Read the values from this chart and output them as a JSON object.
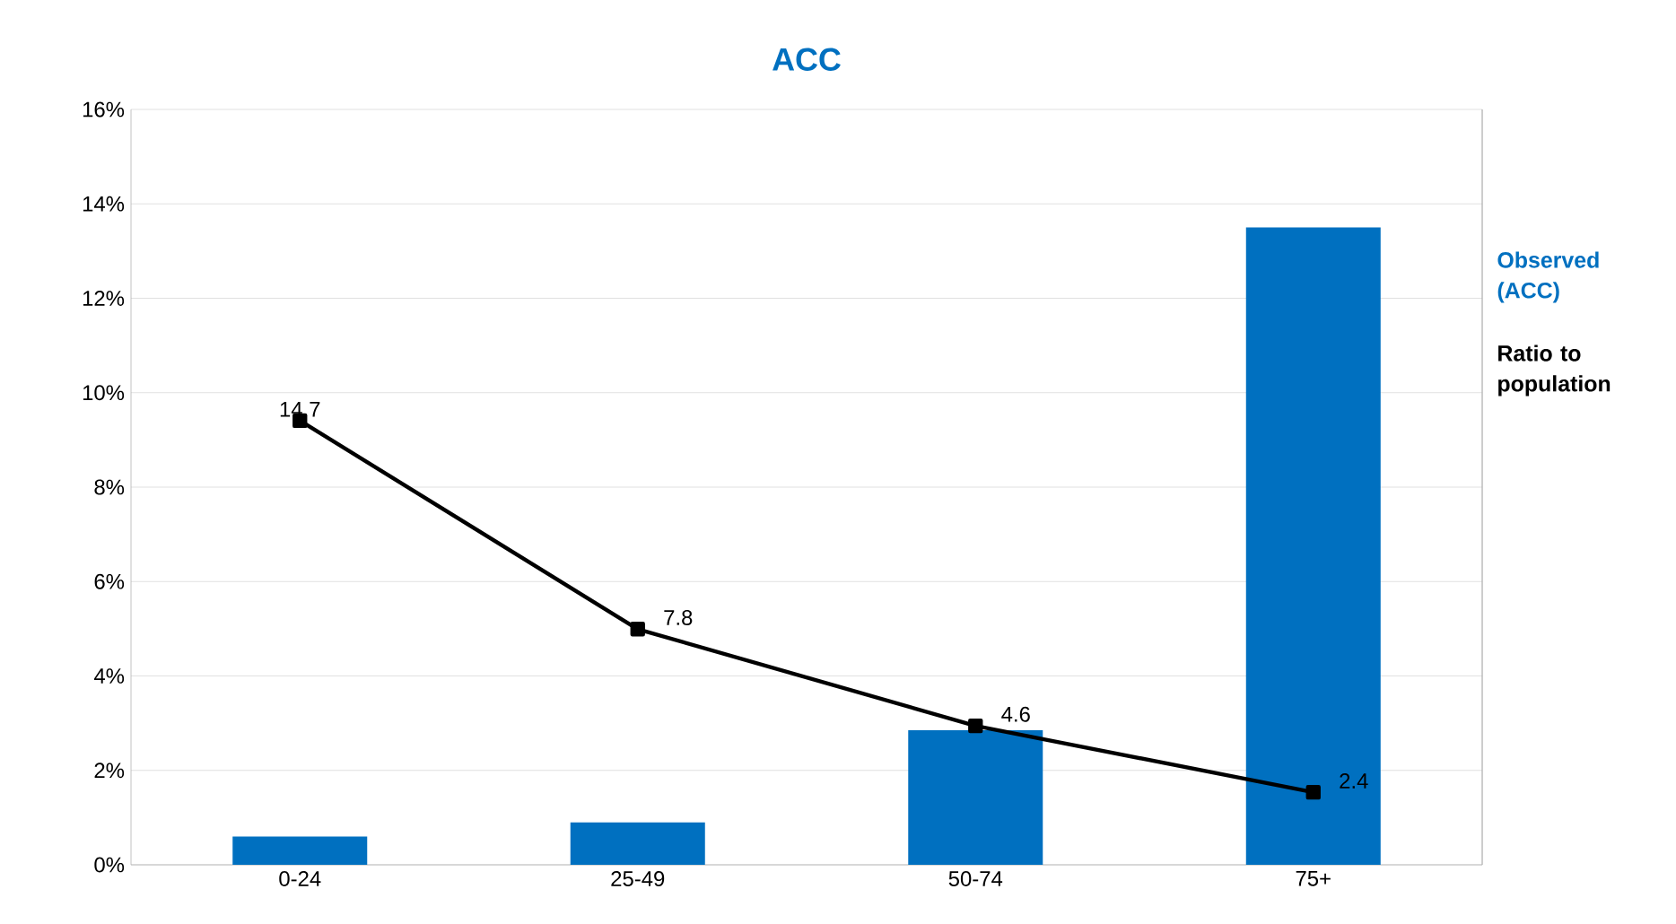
{
  "chart_data": {
    "type": "bar",
    "title": "ACC",
    "categories": [
      "0-24",
      "25-49",
      "50-74",
      "75+"
    ],
    "series": [
      {
        "name": "Observed (ACC)",
        "color": "#0070c0",
        "values": [
          0.6,
          0.9,
          2.85,
          13.5
        ]
      },
      {
        "name": "Ratio to population",
        "type": "line",
        "axis": "y2",
        "color": "#000000",
        "marker": "square",
        "values": [
          14.7,
          7.8,
          4.6,
          2.4
        ],
        "value_labels": [
          "14.7",
          "7.8",
          "4.6",
          "2.4"
        ]
      }
    ],
    "ylim": [
      0,
      16
    ],
    "yticks": [
      {
        "value": 0,
        "label": "0%"
      },
      {
        "value": 2,
        "label": "2%"
      },
      {
        "value": 4,
        "label": "4%"
      },
      {
        "value": 6,
        "label": "6%"
      },
      {
        "value": 8,
        "label": "8%"
      },
      {
        "value": 10,
        "label": "10%"
      },
      {
        "value": 12,
        "label": "12%"
      },
      {
        "value": 14,
        "label": "14%"
      },
      {
        "value": 16,
        "label": "16%"
      }
    ],
    "y2lim": [
      0,
      25
    ],
    "grid": "y",
    "legend": "right"
  }
}
